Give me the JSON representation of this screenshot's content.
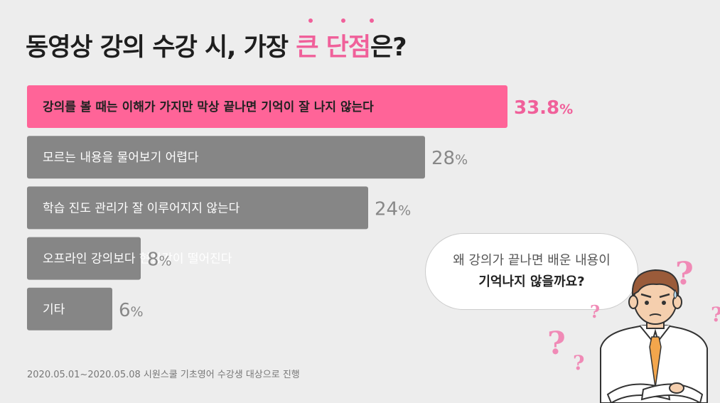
{
  "title": {
    "prefix": "동영상 강의 수강 시, 가장 ",
    "highlight": "큰 단점",
    "suffix": "은?"
  },
  "chart_data": {
    "type": "bar",
    "orientation": "horizontal",
    "categories": [
      "강의를 볼 때는 이해가 가지만 막상 끝나면 기억이 잘 나지 않는다",
      "모르는 내용을 물어보기 어렵다",
      "학습 진도 관리가 잘 이루어지지 않는다",
      "오프라인 강의보다 현장감이 떨어진다",
      "기타"
    ],
    "values": [
      33.8,
      28,
      24,
      8,
      6
    ],
    "value_labels": [
      "33.8",
      "28",
      "24",
      "8",
      "6"
    ],
    "unit": "%",
    "colors": {
      "highlight": "#ff6498",
      "bar": "#868686",
      "highlight_value": "#f0609a",
      "value": "#888888"
    }
  },
  "footnote": "2020.05.01~2020.05.08 시원스쿨 기초영어 수강생 대상으로 진행",
  "bubble": {
    "line1": "왜 강의가 끝나면 배운 내용이",
    "line2": "기억나지 않을까요?"
  },
  "decor": {
    "question_mark": "?",
    "illustration": "confused-man-icon"
  }
}
